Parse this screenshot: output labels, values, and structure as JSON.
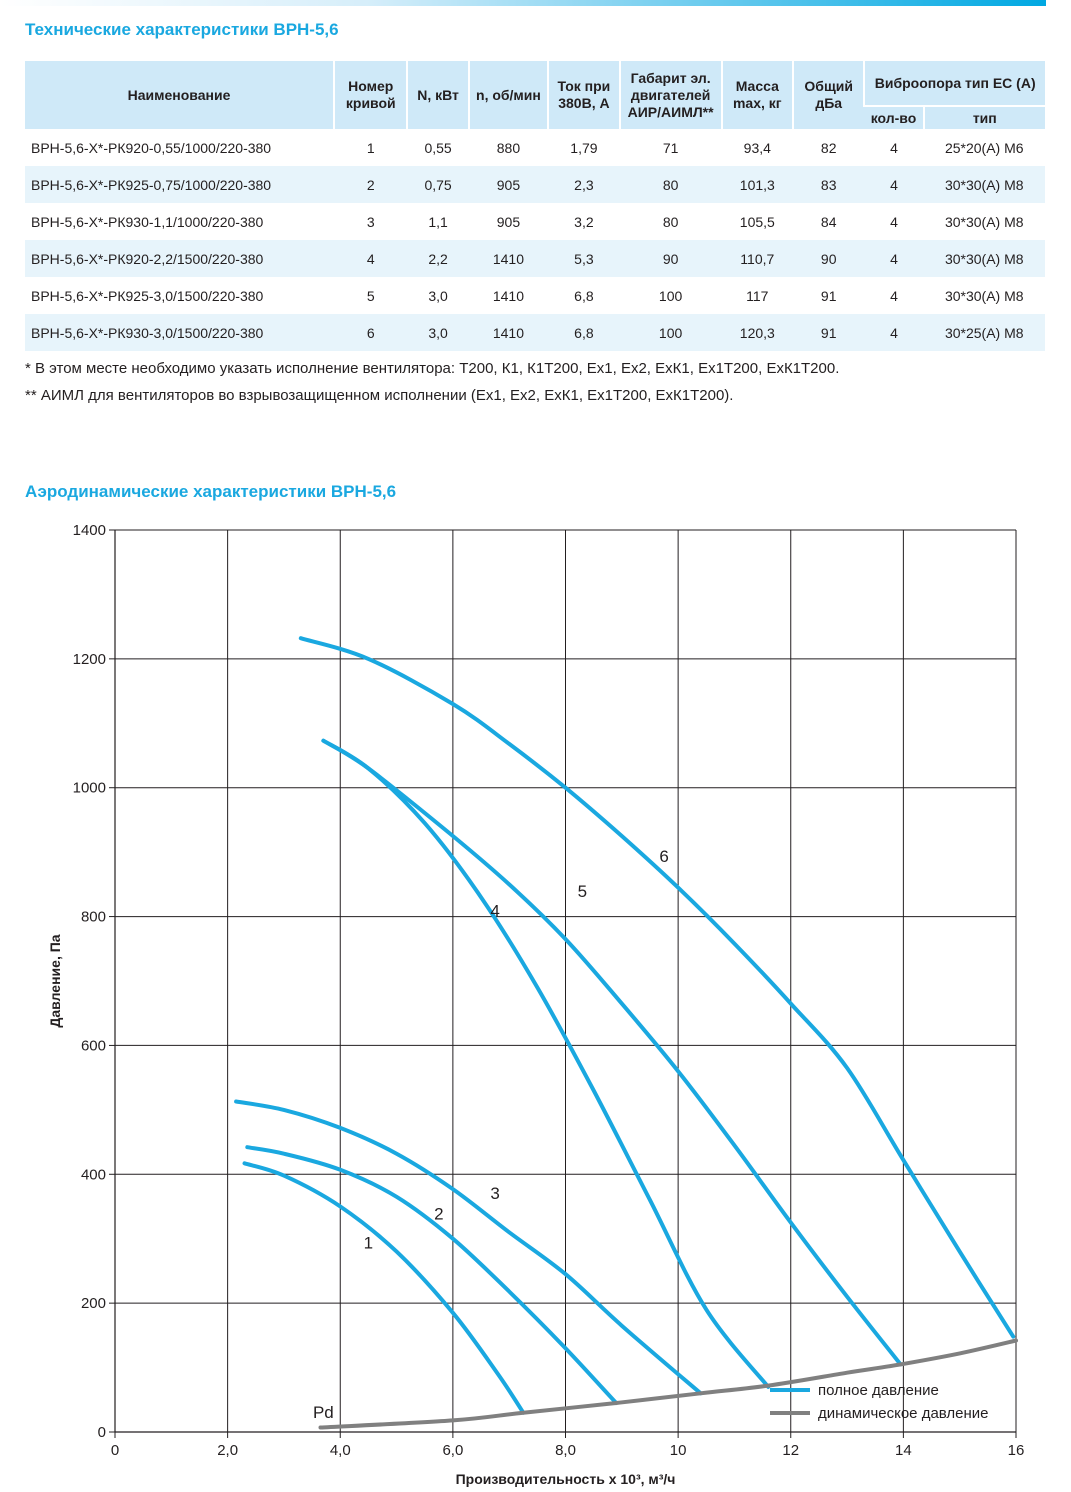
{
  "table_title": "Технические характеристики ВРН-5,6",
  "table": {
    "headers": {
      "name": "Наименование",
      "curve": "Номер кривой",
      "power": "N, кВт",
      "rpm": "n, об/мин",
      "current": "Ток при 380В, А",
      "motor": "Габарит эл. двигателей АИР/АИМЛ**",
      "mass": "Масса max, кг",
      "noise": "Общий дБа",
      "vibro": "Виброопора тип ЕС (А)",
      "vibro_count": "кол-во",
      "vibro_type": "тип"
    },
    "rows": [
      [
        "ВРН-5,6-Х*-РК920-0,55/1000/220-380",
        "1",
        "0,55",
        "880",
        "1,79",
        "71",
        "93,4",
        "82",
        "4",
        "25*20(А) М6"
      ],
      [
        "ВРН-5,6-Х*-РК925-0,75/1000/220-380",
        "2",
        "0,75",
        "905",
        "2,3",
        "80",
        "101,3",
        "83",
        "4",
        "30*30(А) М8"
      ],
      [
        "ВРН-5,6-Х*-РК930-1,1/1000/220-380",
        "3",
        "1,1",
        "905",
        "3,2",
        "80",
        "105,5",
        "84",
        "4",
        "30*30(А) М8"
      ],
      [
        "ВРН-5,6-Х*-РК920-2,2/1500/220-380",
        "4",
        "2,2",
        "1410",
        "5,3",
        "90",
        "110,7",
        "90",
        "4",
        "30*30(А) М8"
      ],
      [
        "ВРН-5,6-Х*-РК925-3,0/1500/220-380",
        "5",
        "3,0",
        "1410",
        "6,8",
        "100",
        "117",
        "91",
        "4",
        "30*30(А) М8"
      ],
      [
        "ВРН-5,6-Х*-РК930-3,0/1500/220-380",
        "6",
        "3,0",
        "1410",
        "6,8",
        "100",
        "120,3",
        "91",
        "4",
        "30*25(А) М8"
      ]
    ]
  },
  "notes": [
    "* В этом месте необходимо указать исполнение вентилятора: Т200, К1, К1Т200, Ex1, Ex2, ExК1, Ex1Т200, ExК1Т200.",
    "** АИМЛ для вентиляторов во взрывозащищенном исполнении (Ex1, Ex2, ExК1, Ex1Т200, ExК1Т200)."
  ],
  "chart_title": "Аэродинамические характеристики ВРН-5,6",
  "colors": {
    "accent": "#1aa8e0",
    "total_pressure": "#1aa8e0",
    "dynamic_pressure": "#808080",
    "grid": "#231f20"
  },
  "chart_data": {
    "type": "line",
    "xlabel": "Производительность х 10³, м³/ч",
    "ylabel": "Давление, Па",
    "xlim": [
      0,
      16
    ],
    "ylim": [
      0,
      1400
    ],
    "x_ticks": [
      0,
      2,
      4,
      6,
      8,
      10,
      12,
      14,
      16
    ],
    "x_tick_labels": [
      "0",
      "2,0",
      "4,0",
      "6,0",
      "8,0",
      "10",
      "12",
      "14",
      "16"
    ],
    "y_ticks": [
      0,
      200,
      400,
      600,
      800,
      1000,
      1200,
      1400
    ],
    "y_tick_labels": [
      "0",
      "200",
      "400",
      "600",
      "800",
      "1000",
      "1200",
      "1400"
    ],
    "grid": true,
    "legend": {
      "position": "bottom-right",
      "items": [
        {
          "label": "полное давление",
          "color": "#1aa8e0"
        },
        {
          "label": "динамическое давление",
          "color": "#808080"
        }
      ]
    },
    "series": [
      {
        "name": "1",
        "kind": "total",
        "label_at": [
          4.5,
          285
        ],
        "points": [
          [
            2.3,
            417
          ],
          [
            3.0,
            398
          ],
          [
            4.0,
            350
          ],
          [
            5.0,
            280
          ],
          [
            6.0,
            185
          ],
          [
            6.8,
            90
          ],
          [
            7.25,
            30
          ]
        ]
      },
      {
        "name": "2",
        "kind": "total",
        "label_at": [
          5.75,
          330
        ],
        "points": [
          [
            2.35,
            442
          ],
          [
            3.0,
            432
          ],
          [
            4.0,
            407
          ],
          [
            5.0,
            365
          ],
          [
            6.0,
            300
          ],
          [
            7.0,
            218
          ],
          [
            8.0,
            130
          ],
          [
            8.9,
            45
          ]
        ]
      },
      {
        "name": "3",
        "kind": "total",
        "label_at": [
          6.75,
          362
        ],
        "points": [
          [
            2.15,
            513
          ],
          [
            3.0,
            500
          ],
          [
            4.0,
            472
          ],
          [
            5.0,
            432
          ],
          [
            6.0,
            377
          ],
          [
            7.0,
            310
          ],
          [
            8.0,
            245
          ],
          [
            9.0,
            165
          ],
          [
            10.4,
            60
          ]
        ]
      },
      {
        "name": "4",
        "kind": "total",
        "label_at": [
          6.75,
          800
        ],
        "points": [
          [
            3.7,
            1073
          ],
          [
            4.5,
            1030
          ],
          [
            5.5,
            945
          ],
          [
            6.5,
            830
          ],
          [
            7.5,
            690
          ],
          [
            8.5,
            530
          ],
          [
            9.5,
            360
          ],
          [
            10.5,
            190
          ],
          [
            11.6,
            70
          ]
        ]
      },
      {
        "name": "5",
        "kind": "total",
        "label_at": [
          8.3,
          830
        ],
        "points": [
          [
            3.7,
            1073
          ],
          [
            4.5,
            1030
          ],
          [
            6.0,
            925
          ],
          [
            7.0,
            850
          ],
          [
            8.0,
            765
          ],
          [
            9.0,
            665
          ],
          [
            10.0,
            560
          ],
          [
            11.0,
            445
          ],
          [
            12.0,
            325
          ],
          [
            13.0,
            210
          ],
          [
            13.95,
            105
          ]
        ]
      },
      {
        "name": "6",
        "kind": "total",
        "label_at": [
          9.75,
          885
        ],
        "points": [
          [
            3.3,
            1232
          ],
          [
            4.5,
            1200
          ],
          [
            6.0,
            1130
          ],
          [
            7.0,
            1068
          ],
          [
            8.0,
            1000
          ],
          [
            9.0,
            925
          ],
          [
            10.0,
            845
          ],
          [
            11.0,
            758
          ],
          [
            12.0,
            665
          ],
          [
            13.0,
            565
          ],
          [
            14.0,
            422
          ],
          [
            15.0,
            280
          ],
          [
            15.95,
            148
          ]
        ]
      },
      {
        "name": "Pd",
        "kind": "dynamic",
        "label_at": [
          3.7,
          22
        ],
        "points": [
          [
            3.65,
            7
          ],
          [
            6.0,
            18
          ],
          [
            7.25,
            30
          ],
          [
            8.9,
            45
          ],
          [
            10.4,
            60
          ],
          [
            11.6,
            72
          ],
          [
            13.0,
            92
          ],
          [
            13.95,
            105
          ],
          [
            15.0,
            122
          ],
          [
            16.0,
            142
          ]
        ]
      }
    ]
  }
}
